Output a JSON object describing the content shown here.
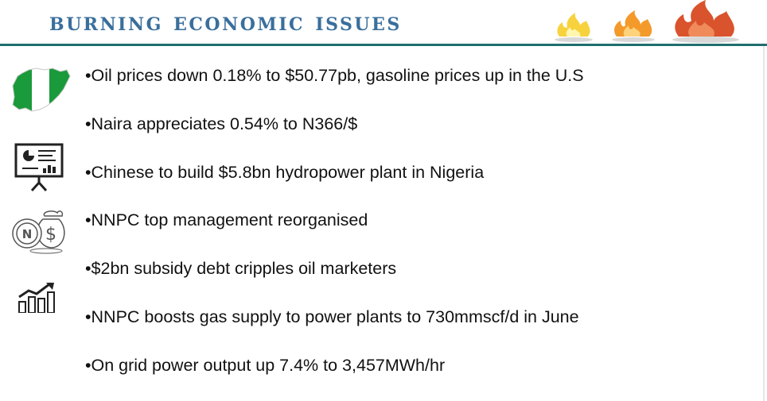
{
  "slide": {
    "title": "Burning economic issues",
    "bullets": [
      {
        "text": "•Oil prices down 0.18% to $50.77pb, gasoline prices up in the U.S"
      },
      {
        "text": "•Naira appreciates 0.54% to N366/$"
      },
      {
        "text": "•Chinese to build $5.8bn hydropower plant in Nigeria"
      },
      {
        "text": "•NNPC top management reorganised"
      },
      {
        "text": "•$2bn subsidy debt cripples oil marketers"
      },
      {
        "text": "•NNPC boosts gas supply to power plants to 730mmscf/d in June"
      },
      {
        "text": "•On grid power output up 7.4% to 3,457MWh/hr"
      }
    ],
    "icons": [
      "flame-yellow-icon",
      "flame-orange-icon",
      "flame-red-icon",
      "nigeria-map-icon",
      "presentation-board-icon",
      "naira-dollar-coins-icon",
      "growth-chart-icon"
    ],
    "colors": {
      "title": "#3a6f9c",
      "rule": "#1e6f6e",
      "map_green": "#1a9a3a",
      "flame_red": "#d9532c",
      "flame_orange": "#f39a2b",
      "flame_yellow": "#f7d23c"
    }
  }
}
